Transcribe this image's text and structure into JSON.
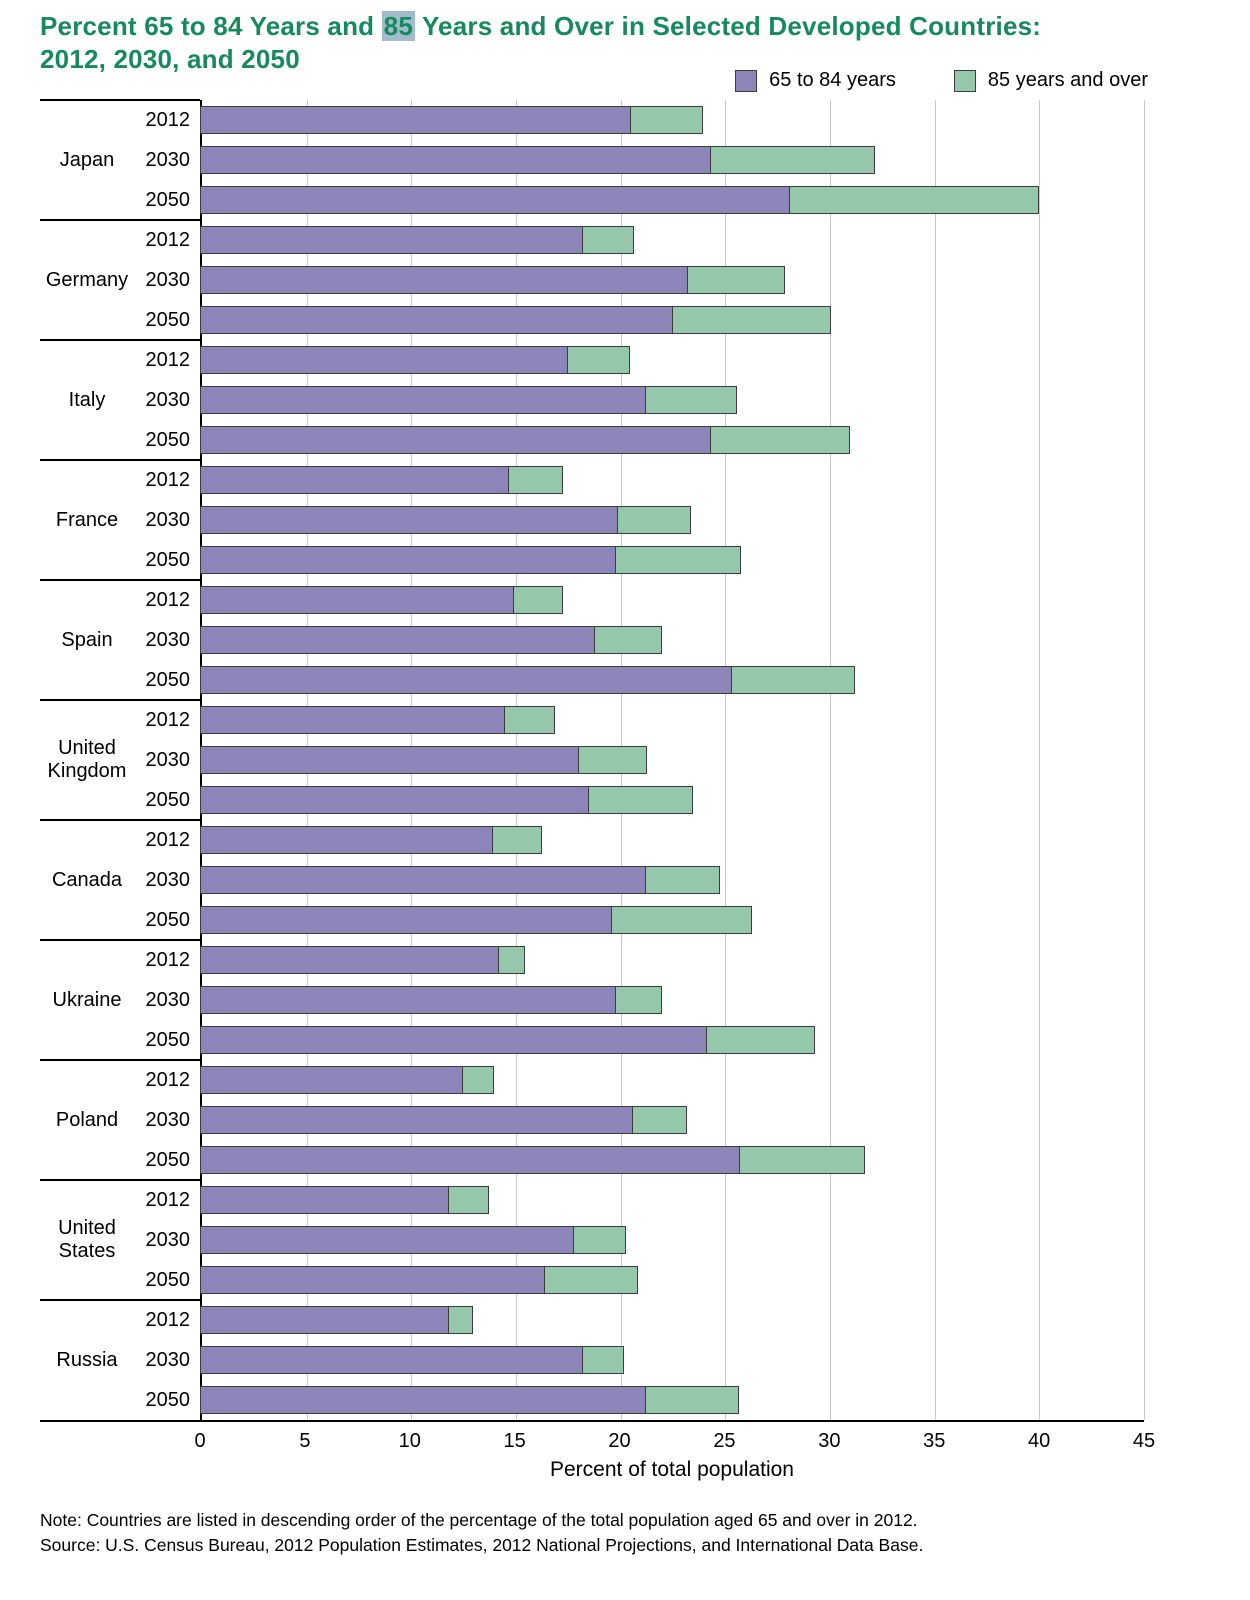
{
  "title": {
    "line1_before_highlight": "Percent 65 to 84 Years and ",
    "highlight": "85",
    "line1_after_highlight": " Years and Over in Selected Developed Countries:",
    "line2": "2012, 2030, and 2050"
  },
  "legend": {
    "items": [
      {
        "label": "65 to 84 years"
      },
      {
        "label": "85 years and over"
      }
    ]
  },
  "colors": {
    "title": "#168a5d",
    "highlight": "#a2bccd",
    "series_65_84": "#8d85ba",
    "series_85_over": "#95c7aa",
    "bar_border": "#3d3d3d",
    "gridline": "#c9c9c9"
  },
  "note": "Note: Countries are listed in descending order of the percentage of the total population aged 65 and over in 2012.",
  "source": "Source: U.S. Census Bureau, 2012 Population Estimates, 2012 National Projections, and International Data Base.",
  "chart_data": {
    "type": "bar",
    "orientation": "horizontal",
    "stacked": true,
    "title": "Percent 65 to 84 Years and 85 Years and Over in Selected Developed Countries: 2012, 2030, and 2050",
    "xlabel": "Percent of total population",
    "xlim": [
      0,
      45
    ],
    "xticks": [
      0,
      5,
      10,
      15,
      20,
      25,
      30,
      35,
      40,
      45
    ],
    "grid": true,
    "legend_position": "top-right",
    "years": [
      "2012",
      "2030",
      "2050"
    ],
    "series_names": [
      "65 to 84 years",
      "85 years and over"
    ],
    "groups": [
      {
        "country": "Japan",
        "values": [
          [
            20.5,
            3.5
          ],
          [
            24.3,
            7.9
          ],
          [
            28.1,
            11.9
          ]
        ]
      },
      {
        "country": "Germany",
        "values": [
          [
            18.2,
            2.5
          ],
          [
            23.2,
            4.7
          ],
          [
            22.5,
            7.6
          ]
        ]
      },
      {
        "country": "Italy",
        "values": [
          [
            17.5,
            3.0
          ],
          [
            21.2,
            4.4
          ],
          [
            24.3,
            6.7
          ]
        ]
      },
      {
        "country": "France",
        "values": [
          [
            14.7,
            2.6
          ],
          [
            19.9,
            3.5
          ],
          [
            19.8,
            6.0
          ]
        ]
      },
      {
        "country": "Spain",
        "values": [
          [
            14.9,
            2.4
          ],
          [
            18.8,
            3.2
          ],
          [
            25.3,
            5.9
          ]
        ]
      },
      {
        "country": "United Kingdom",
        "values": [
          [
            14.5,
            2.4
          ],
          [
            18.0,
            3.3
          ],
          [
            18.5,
            5.0
          ]
        ]
      },
      {
        "country": "Canada",
        "values": [
          [
            13.9,
            2.4
          ],
          [
            21.2,
            3.6
          ],
          [
            19.6,
            6.7
          ]
        ]
      },
      {
        "country": "Ukraine",
        "values": [
          [
            14.2,
            1.3
          ],
          [
            19.8,
            2.2
          ],
          [
            24.1,
            5.2
          ]
        ]
      },
      {
        "country": "Poland",
        "values": [
          [
            12.5,
            1.5
          ],
          [
            20.6,
            2.6
          ],
          [
            25.7,
            6.0
          ]
        ]
      },
      {
        "country": "United States",
        "values": [
          [
            11.8,
            2.0
          ],
          [
            17.8,
            2.5
          ],
          [
            16.4,
            4.5
          ]
        ]
      },
      {
        "country": "Russia",
        "values": [
          [
            11.8,
            1.2
          ],
          [
            18.2,
            2.0
          ],
          [
            21.2,
            4.5
          ]
        ]
      }
    ]
  }
}
